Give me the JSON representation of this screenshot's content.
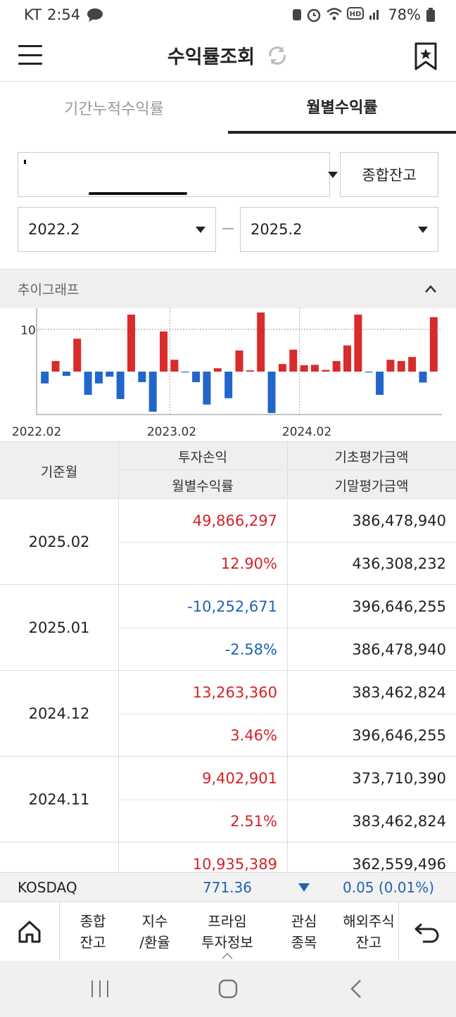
{
  "status_bar": {
    "carrier": "KT",
    "time": "2:54",
    "battery": "78%"
  },
  "header": {
    "title": "수익률조회"
  },
  "tabs": [
    {
      "label": "기간누적수익률",
      "active": false
    },
    {
      "label": "월별수익률",
      "active": true
    }
  ],
  "controls": {
    "summary_button": "종합잔고",
    "start_date": "2022.2",
    "end_date": "2025.2"
  },
  "graph_section": {
    "title": "추이그래프"
  },
  "chart_data": {
    "type": "bar",
    "y_tick_labels": [
      "10"
    ],
    "x_tick_labels": [
      "2022.02",
      "2023.02",
      "2024.02"
    ],
    "categories": [
      "2022.02",
      "2022.03",
      "2022.04",
      "2022.05",
      "2022.06",
      "2022.07",
      "2022.08",
      "2022.09",
      "2022.10",
      "2022.11",
      "2022.12",
      "2023.01",
      "2023.02",
      "2023.03",
      "2023.04",
      "2023.05",
      "2023.06",
      "2023.07",
      "2023.08",
      "2023.09",
      "2023.10",
      "2023.11",
      "2023.12",
      "2024.01",
      "2024.02",
      "2024.03",
      "2024.04",
      "2024.05",
      "2024.06",
      "2024.07",
      "2024.08",
      "2024.09",
      "2024.10",
      "2024.11",
      "2024.12",
      "2025.01",
      "2025.02"
    ],
    "values": [
      -2.8,
      2.5,
      -1.0,
      7.8,
      -5.5,
      -2.8,
      -1.2,
      -6.5,
      13.5,
      -2.5,
      -9.5,
      9.5,
      2.8,
      -0.2,
      -2.5,
      -7.8,
      0.8,
      -6.3,
      5.0,
      0.3,
      14.0,
      -9.8,
      1.8,
      5.2,
      1.5,
      1.6,
      0.4,
      2.5,
      6.2,
      13.5,
      -0.2,
      -5.5,
      2.8,
      2.51,
      3.46,
      -2.58,
      12.9
    ],
    "ylim": [
      -10,
      15
    ],
    "grid": true,
    "colors": {
      "positive": "#d92b2b",
      "negative": "#2266cc"
    }
  },
  "table": {
    "headers": {
      "month": "기준월",
      "pnl": "투자손익",
      "return": "월별수익률",
      "begin_value": "기초평가금액",
      "end_value": "기말평가금액"
    },
    "rows": [
      {
        "month": "2025.02",
        "pnl": "49,866,297",
        "return": "12.90%",
        "begin_value": "386,478,940",
        "end_value": "436,308,232",
        "sign": "pos"
      },
      {
        "month": "2025.01",
        "pnl": "-10,252,671",
        "return": "-2.58%",
        "begin_value": "396,646,255",
        "end_value": "386,478,940",
        "sign": "neg"
      },
      {
        "month": "2024.12",
        "pnl": "13,263,360",
        "return": "3.46%",
        "begin_value": "383,462,824",
        "end_value": "396,646,255",
        "sign": "pos"
      },
      {
        "month": "2024.11",
        "pnl": "9,402,901",
        "return": "2.51%",
        "begin_value": "373,710,390",
        "end_value": "383,462,824",
        "sign": "pos"
      },
      {
        "month": "",
        "pnl": "10,935,389",
        "return": "",
        "begin_value": "362,559,496",
        "end_value": "",
        "sign": "pos"
      }
    ]
  },
  "ticker": {
    "name": "KOSDAQ",
    "value": "771.36",
    "change": "0.05 (0.01%)"
  },
  "bottom_nav": [
    {
      "label": "종합\n잔고"
    },
    {
      "label": "지수\n/환율"
    },
    {
      "label": "프라임\n투자정보"
    },
    {
      "label": "관심\n종목"
    },
    {
      "label": "해외주식\n잔고"
    }
  ],
  "icons": {
    "home": "home-icon",
    "back": "undo-icon",
    "refresh": "refresh-icon",
    "bookmark": "bookmark-star-icon"
  }
}
